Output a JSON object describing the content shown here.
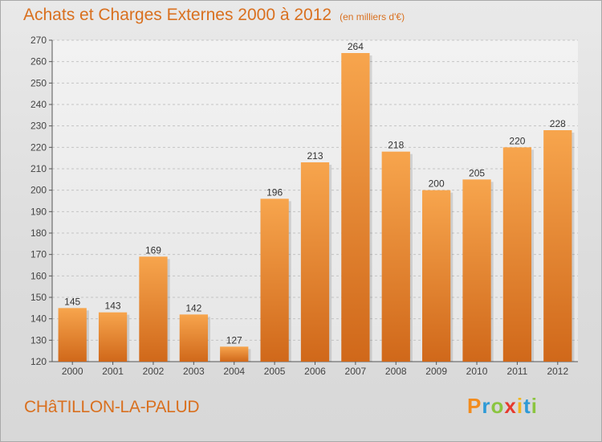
{
  "header": {
    "title": "Achats et Charges Externes 2000 à 2012",
    "subtitle": "(en milliers d'€)"
  },
  "footer": {
    "commune": "CHâTILLON-LA-PALUD",
    "logo_letters": [
      "P",
      "r",
      "o",
      "x",
      "i",
      "t",
      "i"
    ],
    "logo_colors": [
      "#f28c1e",
      "#2e9ad6",
      "#8bc53f",
      "#e63a2e",
      "#f2b51e",
      "#2e9ad6",
      "#8bc53f"
    ]
  },
  "chart_data": {
    "type": "bar",
    "categories": [
      "2000",
      "2001",
      "2002",
      "2003",
      "2004",
      "2005",
      "2006",
      "2007",
      "2008",
      "2009",
      "2010",
      "2011",
      "2012"
    ],
    "values": [
      145,
      143,
      169,
      142,
      127,
      196,
      213,
      264,
      218,
      200,
      205,
      220,
      228
    ],
    "title": "Achats et Charges Externes 2000 à 2012",
    "xlabel": "",
    "ylabel": "",
    "ylim": [
      120,
      270
    ],
    "yticks": [
      120,
      130,
      140,
      150,
      160,
      170,
      180,
      190,
      200,
      210,
      220,
      230,
      240,
      250,
      260,
      270
    ],
    "grid": true,
    "colors": {
      "bar_top": "#f7a54d",
      "bar_bottom": "#d0681a",
      "label": "#333333",
      "axis": "#555555"
    }
  }
}
